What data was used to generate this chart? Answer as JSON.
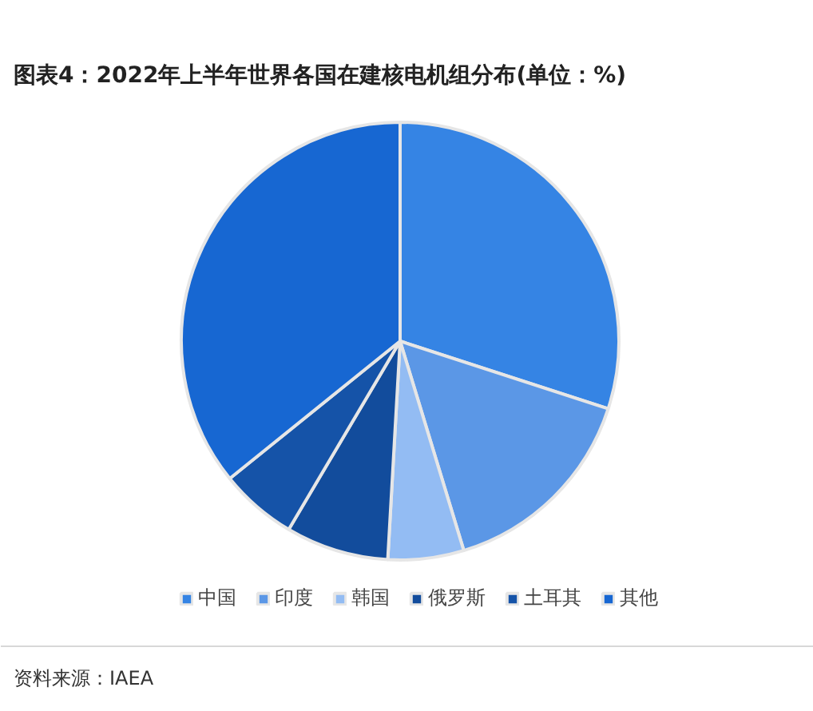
{
  "chart_data": {
    "type": "pie",
    "title": "图表4：2022年上半年世界各国在建核电机组分布(单位：%)",
    "categories": [
      "中国",
      "印度",
      "韩国",
      "俄罗斯",
      "土耳其",
      "其他"
    ],
    "values": [
      30.0,
      15.3,
      5.6,
      7.6,
      5.7,
      35.8
    ],
    "colors": [
      "#3584e4",
      "#5b97e6",
      "#93bcf3",
      "#124c9c",
      "#1553a8",
      "#1767d2"
    ],
    "legend": "bottom",
    "annotations": [
      "资料来源：IAEA"
    ]
  }
}
